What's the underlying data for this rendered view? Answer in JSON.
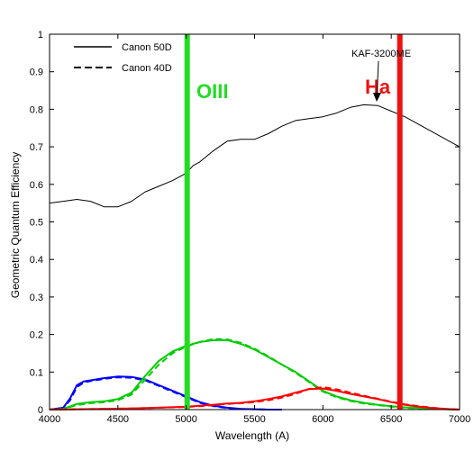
{
  "chart_data": {
    "type": "line",
    "xlabel": "Wavelength (A)",
    "ylabel": "Geometric Quantum Efficiency",
    "xlim": [
      4000,
      7000
    ],
    "ylim": [
      0,
      1
    ],
    "x_ticks": [
      4000,
      4500,
      5000,
      5500,
      6000,
      6500,
      7000
    ],
    "y_ticks": [
      0,
      0.1,
      0.2,
      0.3,
      0.4,
      0.5,
      0.6,
      0.7,
      0.8,
      0.9,
      1
    ],
    "x_tick_labels": [
      "4000",
      "4500",
      "5000",
      "5500",
      "6000",
      "6500",
      "7000"
    ],
    "y_tick_labels": [
      "0",
      "0.1",
      "0.2",
      "0.3",
      "0.4",
      "0.5",
      "0.6",
      "0.7",
      "0.8",
      "0.9",
      "1"
    ],
    "grid": false,
    "legend": {
      "placement": "top-left",
      "entries": [
        {
          "label": "Canon 50D",
          "style": "solid"
        },
        {
          "label": "Canon 40D",
          "style": "dashed"
        }
      ]
    },
    "series": [
      {
        "name": "KAF-3200ME",
        "style": "solid",
        "color": "#000000",
        "x": [
          4000,
          4100,
          4200,
          4300,
          4400,
          4500,
          4600,
          4700,
          4800,
          4900,
          5000,
          5050,
          5100,
          5200,
          5300,
          5400,
          5500,
          5600,
          5700,
          5800,
          5900,
          6000,
          6100,
          6200,
          6300,
          6400,
          6500,
          6600,
          6700,
          6800,
          6900,
          7000
        ],
        "y": [
          0.55,
          0.555,
          0.56,
          0.555,
          0.54,
          0.54,
          0.555,
          0.58,
          0.595,
          0.61,
          0.63,
          0.65,
          0.66,
          0.69,
          0.715,
          0.72,
          0.72,
          0.735,
          0.755,
          0.77,
          0.775,
          0.78,
          0.79,
          0.805,
          0.812,
          0.81,
          0.795,
          0.78,
          0.76,
          0.74,
          0.72,
          0.7
        ]
      },
      {
        "style": "solid",
        "color": "#0000ff",
        "x": [
          4000,
          4100,
          4150,
          4200,
          4250,
          4300,
          4400,
          4500,
          4600,
          4700,
          4800,
          4900,
          5000,
          5100,
          5200,
          5300,
          5400,
          5500,
          5600,
          5700
        ],
        "y": [
          0,
          0.005,
          0.03,
          0.065,
          0.075,
          0.078,
          0.084,
          0.088,
          0.087,
          0.08,
          0.065,
          0.05,
          0.035,
          0.02,
          0.01,
          0.005,
          0.002,
          0.001,
          0,
          0
        ]
      },
      {
        "style": "dashed",
        "color": "#0000ff",
        "x": [
          4000,
          4100,
          4150,
          4200,
          4250,
          4300,
          4400,
          4500,
          4600,
          4700,
          4800,
          4900,
          5000,
          5100,
          5200,
          5300,
          5400,
          5500,
          5600,
          5700
        ],
        "y": [
          0,
          0.004,
          0.025,
          0.06,
          0.072,
          0.076,
          0.082,
          0.086,
          0.085,
          0.078,
          0.063,
          0.048,
          0.033,
          0.018,
          0.009,
          0.004,
          0.002,
          0.001,
          0,
          0
        ]
      },
      {
        "style": "solid",
        "color": "#00cc00",
        "x": [
          4000,
          4100,
          4200,
          4300,
          4400,
          4500,
          4600,
          4700,
          4800,
          4900,
          5000,
          5100,
          5200,
          5300,
          5400,
          5500,
          5600,
          5700,
          5800,
          5900,
          6000,
          6100,
          6200,
          6300,
          6400,
          6500,
          6600,
          6700,
          6800,
          6900,
          7000
        ],
        "y": [
          0,
          0.002,
          0.015,
          0.02,
          0.022,
          0.028,
          0.045,
          0.09,
          0.13,
          0.155,
          0.17,
          0.18,
          0.185,
          0.185,
          0.175,
          0.16,
          0.14,
          0.12,
          0.1,
          0.075,
          0.05,
          0.035,
          0.025,
          0.018,
          0.013,
          0.009,
          0.006,
          0.004,
          0.002,
          0.001,
          0
        ]
      },
      {
        "style": "dashed",
        "color": "#00cc00",
        "x": [
          4000,
          4100,
          4200,
          4300,
          4400,
          4500,
          4600,
          4700,
          4800,
          4900,
          5000,
          5100,
          5200,
          5300,
          5400,
          5500,
          5600,
          5700,
          5800,
          5900,
          6000,
          6100,
          6200,
          6300,
          6400,
          6500,
          6600,
          6700,
          6800,
          6900,
          7000
        ],
        "y": [
          0,
          0.002,
          0.012,
          0.017,
          0.02,
          0.025,
          0.04,
          0.08,
          0.12,
          0.15,
          0.168,
          0.18,
          0.188,
          0.187,
          0.178,
          0.162,
          0.142,
          0.12,
          0.098,
          0.073,
          0.048,
          0.033,
          0.023,
          0.016,
          0.012,
          0.008,
          0.005,
          0.003,
          0.002,
          0.001,
          0
        ]
      },
      {
        "style": "solid",
        "color": "#ff0000",
        "x": [
          4000,
          4200,
          4400,
          4600,
          4800,
          5000,
          5100,
          5200,
          5300,
          5400,
          5500,
          5600,
          5700,
          5800,
          5900,
          6000,
          6100,
          6200,
          6300,
          6400,
          6500,
          6600,
          6700,
          6800,
          6900,
          7000
        ],
        "y": [
          0,
          0.001,
          0.002,
          0.003,
          0.005,
          0.008,
          0.01,
          0.013,
          0.016,
          0.018,
          0.022,
          0.028,
          0.035,
          0.045,
          0.055,
          0.056,
          0.05,
          0.042,
          0.035,
          0.028,
          0.02,
          0.013,
          0.008,
          0.004,
          0.002,
          0
        ]
      },
      {
        "style": "dashed",
        "color": "#ff0000",
        "x": [
          4000,
          4200,
          4400,
          4600,
          4800,
          5000,
          5100,
          5200,
          5300,
          5400,
          5500,
          5600,
          5700,
          5800,
          5900,
          6000,
          6100,
          6200,
          6300,
          6400,
          6500,
          6600,
          6700,
          6800,
          6900,
          7000
        ],
        "y": [
          0,
          0.001,
          0.002,
          0.003,
          0.005,
          0.007,
          0.009,
          0.012,
          0.015,
          0.017,
          0.02,
          0.025,
          0.032,
          0.042,
          0.055,
          0.06,
          0.054,
          0.045,
          0.037,
          0.029,
          0.021,
          0.014,
          0.009,
          0.005,
          0.002,
          0
        ]
      }
    ],
    "vertical_lines": [
      {
        "label": "OIII",
        "x": 5007,
        "color": "#22dd22"
      },
      {
        "label": "Ha",
        "x": 6563,
        "color": "#ee1111"
      }
    ],
    "annotations": [
      {
        "text": "KAF-3200ME",
        "x": 6350,
        "y": 0.81
      }
    ]
  }
}
